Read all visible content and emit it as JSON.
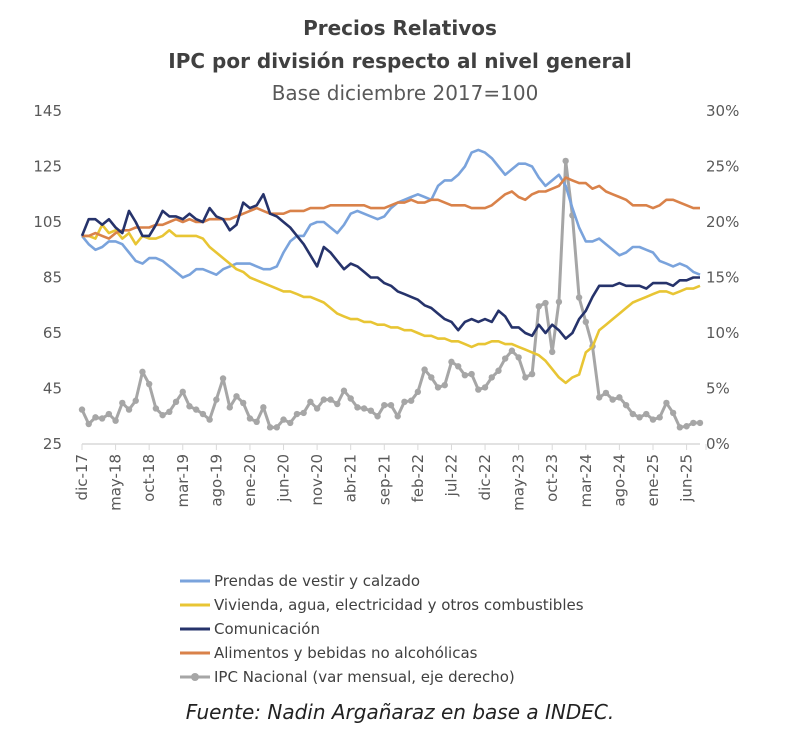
{
  "chart_data": {
    "type": "line",
    "title": "Precios Relativos",
    "subtitle": "IPC por división respecto al nivel general",
    "subtitle2": "Base diciembre 2017=100",
    "source": "Fuente: Nadin Argañaraz en base a INDEC.",
    "x_tick_labels": [
      "dic-17",
      "may-18",
      "oct-18",
      "mar-19",
      "ago-19",
      "ene-20",
      "jun-20",
      "nov-20",
      "abr-21",
      "sep-21",
      "feb-22",
      "jul-22",
      "dic-22",
      "may-23",
      "oct-23",
      "mar-24",
      "ago-24",
      "ene-25",
      "jun-25"
    ],
    "x_tick_step_months": 5,
    "ylim_left": [
      25,
      145
    ],
    "y_ticks_left": [
      "25",
      "45",
      "65",
      "85",
      "105",
      "125",
      "145"
    ],
    "ylim_right": [
      0,
      30
    ],
    "y_ticks_right": [
      "0%",
      "5%",
      "10%",
      "15%",
      "20%",
      "25%",
      "30%"
    ],
    "grid": false,
    "legend_position": "bottom",
    "series": [
      {
        "name": "Prendas de vestir y calzado",
        "color": "#7aa3dc",
        "axis": "left",
        "values": [
          100,
          97,
          95,
          96,
          98,
          98,
          97,
          94,
          91,
          90,
          92,
          92,
          91,
          89,
          87,
          85,
          86,
          88,
          88,
          87,
          86,
          88,
          89,
          90,
          90,
          90,
          89,
          88,
          88,
          89,
          94,
          98,
          100,
          100,
          104,
          105,
          105,
          103,
          101,
          104,
          108,
          109,
          108,
          107,
          106,
          107,
          110,
          112,
          113,
          114,
          115,
          114,
          113,
          118,
          120,
          120,
          122,
          125,
          130,
          131,
          130,
          128,
          125,
          122,
          124,
          126,
          126,
          125,
          121,
          118,
          120,
          122,
          118,
          110,
          103,
          98,
          98,
          99,
          97,
          95,
          93,
          94,
          96,
          96,
          95,
          94,
          91,
          90,
          89,
          90,
          89,
          87,
          86
        ]
      },
      {
        "name": "Vivienda, agua, electricidad y otros combustibles",
        "color": "#e8c534",
        "axis": "left",
        "values": [
          100,
          100,
          99,
          104,
          101,
          102,
          99,
          101,
          97,
          100,
          99,
          99,
          100,
          102,
          100,
          100,
          100,
          100,
          99,
          96,
          94,
          92,
          90,
          88,
          87,
          85,
          84,
          83,
          82,
          81,
          80,
          80,
          79,
          78,
          78,
          77,
          76,
          74,
          72,
          71,
          70,
          70,
          69,
          69,
          68,
          68,
          67,
          67,
          66,
          66,
          65,
          64,
          64,
          63,
          63,
          62,
          62,
          61,
          60,
          61,
          61,
          62,
          62,
          61,
          61,
          60,
          59,
          58,
          57,
          55,
          52,
          49,
          47,
          49,
          50,
          58,
          60,
          66,
          68,
          70,
          72,
          74,
          76,
          77,
          78,
          79,
          80,
          80,
          79,
          80,
          81,
          81,
          82
        ]
      },
      {
        "name": "Comunicación",
        "color": "#26336b",
        "axis": "left",
        "values": [
          100,
          106,
          106,
          104,
          106,
          103,
          101,
          109,
          105,
          100,
          100,
          104,
          109,
          107,
          107,
          106,
          108,
          106,
          105,
          110,
          107,
          106,
          102,
          104,
          112,
          110,
          111,
          115,
          108,
          107,
          105,
          103,
          100,
          97,
          93,
          89,
          96,
          94,
          91,
          88,
          90,
          89,
          87,
          85,
          85,
          83,
          82,
          80,
          79,
          78,
          77,
          75,
          74,
          72,
          70,
          69,
          66,
          69,
          70,
          69,
          70,
          69,
          73,
          71,
          67,
          67,
          65,
          64,
          68,
          65,
          68,
          66,
          63,
          65,
          70,
          73,
          78,
          82,
          82,
          82,
          83,
          82,
          82,
          82,
          81,
          83,
          83,
          83,
          82,
          84,
          84,
          85,
          85
        ]
      },
      {
        "name": "Alimentos y bebidas no alcohólicas",
        "color": "#d9824a",
        "axis": "left",
        "values": [
          100,
          100,
          101,
          100,
          99,
          101,
          102,
          102,
          103,
          103,
          103,
          104,
          104,
          105,
          106,
          105,
          106,
          105,
          105,
          106,
          106,
          106,
          106,
          107,
          108,
          109,
          110,
          109,
          108,
          108,
          108,
          109,
          109,
          109,
          110,
          110,
          110,
          111,
          111,
          111,
          111,
          111,
          111,
          110,
          110,
          110,
          111,
          112,
          112,
          113,
          112,
          112,
          113,
          113,
          112,
          111,
          111,
          111,
          110,
          110,
          110,
          111,
          113,
          115,
          116,
          114,
          113,
          115,
          116,
          116,
          117,
          118,
          121,
          120,
          119,
          119,
          117,
          118,
          116,
          115,
          114,
          113,
          111,
          111,
          111,
          110,
          111,
          113,
          113,
          112,
          111,
          110,
          110
        ]
      },
      {
        "name": "IPC Nacional (var mensual, eje derecho)",
        "color": "#a6a6a6",
        "axis": "right",
        "markers": true,
        "values": [
          3.1,
          1.8,
          2.4,
          2.3,
          2.7,
          2.1,
          3.7,
          3.1,
          3.9,
          6.5,
          5.4,
          3.2,
          2.6,
          2.9,
          3.8,
          4.7,
          3.4,
          3.1,
          2.7,
          2.2,
          4.0,
          5.9,
          3.3,
          4.3,
          3.7,
          2.3,
          2.0,
          3.3,
          1.5,
          1.5,
          2.2,
          1.9,
          2.7,
          2.8,
          3.8,
          3.2,
          4.0,
          4.0,
          3.6,
          4.8,
          4.1,
          3.3,
          3.2,
          3.0,
          2.5,
          3.5,
          3.5,
          2.5,
          3.8,
          3.9,
          4.7,
          6.7,
          6.0,
          5.1,
          5.3,
          7.4,
          7.0,
          6.2,
          6.3,
          4.9,
          5.1,
          6.0,
          6.6,
          7.7,
          8.4,
          7.8,
          6.0,
          6.3,
          12.4,
          12.7,
          8.3,
          12.8,
          25.5,
          20.6,
          13.2,
          11.0,
          8.8,
          4.2,
          4.6,
          4.0,
          4.2,
          3.5,
          2.7,
          2.4,
          2.7,
          2.2,
          2.4,
          3.7,
          2.8,
          1.5,
          1.6,
          1.9,
          1.9
        ]
      }
    ]
  }
}
